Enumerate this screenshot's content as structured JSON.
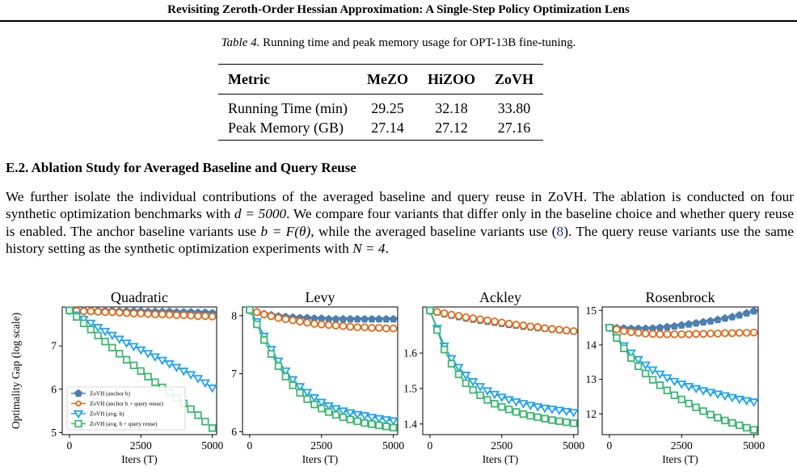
{
  "header": {
    "running_title": "Revisiting Zeroth-Order Hessian Approximation: A Single-Step Policy Optimization Lens"
  },
  "table": {
    "caption_label": "Table 4.",
    "caption_text": "Running time and peak memory usage for OPT-13B fine-tuning.",
    "columns": [
      "Metric",
      "MeZO",
      "HiZOO",
      "ZoVH"
    ],
    "rows": [
      [
        "Running Time (min)",
        "29.25",
        "32.18",
        "33.80"
      ],
      [
        "Peak Memory (GB)",
        "27.14",
        "27.12",
        "27.16"
      ]
    ]
  },
  "section": {
    "title": "E.2. Ablation Study for Averaged Baseline and Query Reuse",
    "p1": "We further isolate the individual contributions of the averaged baseline and query reuse in ZoVH. The ablation is conducted on four synthetic optimization benchmarks with ",
    "p1_math": "d = 5000",
    "p2": ". We compare four variants that differ only in the baseline choice and whether query reuse is enabled. The anchor baseline variants use ",
    "p2_math": "b = F(θ)",
    "p3": ", while the averaged baseline variants use (",
    "p3_cite": "8",
    "p4": "). The query reuse variants use the same history setting as the synthetic optimization experiments with ",
    "p4_math": "N = 4",
    "p5": "."
  },
  "chart_data": [
    {
      "type": "line",
      "title": "Quadratic",
      "xlabel": "Iters (T)",
      "ylabel": "Optimality Gap (log scale)",
      "xlim": [
        -250,
        5150
      ],
      "ylim": [
        4.95,
        7.9
      ],
      "xticks": [
        0,
        2500,
        5000
      ],
      "xticklabels": [
        "0",
        "2500",
        "5000"
      ],
      "yticks": [
        5,
        6,
        7
      ],
      "yticklabels": [
        "5",
        "6",
        "7"
      ],
      "legend": "lower-left",
      "series": [
        {
          "name": "ZoVH (anchor b)",
          "color": "#4a7fb0",
          "marker": "pentagon",
          "filled": true,
          "values": [
            7.82,
            7.82,
            7.82,
            7.81,
            7.81,
            7.81,
            7.81,
            7.8,
            7.8,
            7.8,
            7.8,
            7.79,
            7.79,
            7.79,
            7.79,
            7.78,
            7.78,
            7.78,
            7.77,
            7.77,
            7.76
          ]
        },
        {
          "name": "ZoVH (anchor b + query reuse)",
          "color": "#dd6c1e",
          "marker": "circle",
          "filled": false,
          "values": [
            7.82,
            7.81,
            7.8,
            7.8,
            7.79,
            7.78,
            7.78,
            7.77,
            7.76,
            7.75,
            7.75,
            7.74,
            7.73,
            7.73,
            7.72,
            7.71,
            7.71,
            7.7,
            7.69,
            7.69,
            7.68
          ]
        },
        {
          "name": "ZoVH (avg. b)",
          "color": "#1ea2f0",
          "marker": "triangle-down",
          "filled": false,
          "values": [
            7.82,
            7.72,
            7.62,
            7.53,
            7.43,
            7.34,
            7.25,
            7.16,
            7.07,
            6.99,
            6.91,
            6.83,
            6.75,
            6.67,
            6.59,
            6.51,
            6.42,
            6.34,
            6.25,
            6.15,
            6.03
          ]
        },
        {
          "name": "ZoVH (avg. b + query reuse)",
          "color": "#3cb870",
          "marker": "square",
          "filled": false,
          "values": [
            7.82,
            7.67,
            7.52,
            7.38,
            7.24,
            7.1,
            6.96,
            6.82,
            6.68,
            6.55,
            6.42,
            6.29,
            6.16,
            6.04,
            5.92,
            5.8,
            5.67,
            5.54,
            5.4,
            5.25,
            5.1
          ]
        }
      ]
    },
    {
      "type": "line",
      "title": "Levy",
      "xlabel": "Iters (T)",
      "ylabel": "",
      "xlim": [
        -250,
        5150
      ],
      "ylim": [
        5.95,
        8.15
      ],
      "xticks": [
        0,
        2500,
        5000
      ],
      "xticklabels": [
        "0",
        "2500",
        "5000"
      ],
      "yticks": [
        6,
        7,
        8
      ],
      "yticklabels": [
        "6",
        "7",
        "8"
      ],
      "series": [
        {
          "name": "ZoVH (anchor b)",
          "color": "#4a7fb0",
          "marker": "pentagon",
          "filled": true,
          "values": [
            8.1,
            8.06,
            8.03,
            8.01,
            7.99,
            7.98,
            7.97,
            7.96,
            7.96,
            7.95,
            7.95,
            7.94,
            7.94,
            7.94,
            7.94,
            7.94,
            7.94,
            7.94,
            7.94,
            7.94,
            7.94
          ]
        },
        {
          "name": "ZoVH (anchor b + query reuse)",
          "color": "#dd6c1e",
          "marker": "circle",
          "filled": false,
          "values": [
            8.1,
            8.06,
            8.02,
            7.99,
            7.96,
            7.94,
            7.92,
            7.9,
            7.88,
            7.86,
            7.85,
            7.84,
            7.83,
            7.82,
            7.81,
            7.8,
            7.8,
            7.79,
            7.79,
            7.78,
            7.78
          ]
        },
        {
          "name": "ZoVH (avg. b)",
          "color": "#1ea2f0",
          "marker": "triangle-down",
          "filled": false,
          "values": [
            8.1,
            7.9,
            7.65,
            7.42,
            7.22,
            7.05,
            6.9,
            6.78,
            6.68,
            6.59,
            6.51,
            6.45,
            6.4,
            6.36,
            6.33,
            6.3,
            6.28,
            6.25,
            6.23,
            6.21,
            6.19
          ]
        },
        {
          "name": "ZoVH (avg. b + query reuse)",
          "color": "#3cb870",
          "marker": "square",
          "filled": false,
          "values": [
            8.1,
            7.85,
            7.58,
            7.34,
            7.13,
            6.95,
            6.8,
            6.67,
            6.56,
            6.47,
            6.4,
            6.34,
            6.29,
            6.25,
            6.21,
            6.18,
            6.15,
            6.13,
            6.11,
            6.09,
            6.07
          ]
        }
      ]
    },
    {
      "type": "line",
      "title": "Ackley",
      "xlabel": "Iters (T)",
      "ylabel": "",
      "xlim": [
        -250,
        5150
      ],
      "ylim": [
        1.37,
        1.73
      ],
      "xticks": [
        0,
        2500,
        5000
      ],
      "xticklabels": [
        "0",
        "2500",
        "5000"
      ],
      "yticks": [
        1.4,
        1.5,
        1.6
      ],
      "yticklabels": [
        "1.4",
        "1.5",
        "1.6"
      ],
      "series": [
        {
          "name": "ZoVH (anchor b)",
          "color": "#4a7fb0",
          "marker": "pentagon",
          "filled": true,
          "values": [
            1.72,
            1.715,
            1.71,
            1.706,
            1.702,
            1.698,
            1.695,
            1.692,
            1.689,
            1.686,
            1.683,
            1.68,
            1.678,
            1.675,
            1.673,
            1.671,
            1.669,
            1.667,
            1.665,
            1.663,
            1.661
          ]
        },
        {
          "name": "ZoVH (anchor b + query reuse)",
          "color": "#dd6c1e",
          "marker": "circle",
          "filled": false,
          "values": [
            1.72,
            1.716,
            1.712,
            1.708,
            1.705,
            1.701,
            1.698,
            1.695,
            1.692,
            1.689,
            1.686,
            1.683,
            1.68,
            1.678,
            1.675,
            1.673,
            1.67,
            1.668,
            1.666,
            1.664,
            1.662
          ]
        },
        {
          "name": "ZoVH (avg. b)",
          "color": "#1ea2f0",
          "marker": "triangle-down",
          "filled": false,
          "values": [
            1.72,
            1.67,
            1.62,
            1.585,
            1.56,
            1.538,
            1.52,
            1.506,
            1.494,
            1.484,
            1.476,
            1.469,
            1.463,
            1.458,
            1.453,
            1.449,
            1.445,
            1.442,
            1.439,
            1.436,
            1.433
          ]
        },
        {
          "name": "ZoVH (avg. b + query reuse)",
          "color": "#3cb870",
          "marker": "square",
          "filled": false,
          "values": [
            1.72,
            1.665,
            1.61,
            1.57,
            1.54,
            1.515,
            1.496,
            1.481,
            1.468,
            1.457,
            1.448,
            1.441,
            1.434,
            1.428,
            1.423,
            1.419,
            1.415,
            1.411,
            1.408,
            1.405,
            1.402
          ]
        }
      ]
    },
    {
      "type": "line",
      "title": "Rosenbrock",
      "xlabel": "Iters (T)",
      "ylabel": "",
      "xlim": [
        -250,
        5150
      ],
      "ylim": [
        11.4,
        15.1
      ],
      "xticks": [
        0,
        2500,
        5000
      ],
      "xticklabels": [
        "0",
        "2500",
        "5000"
      ],
      "yticks": [
        12,
        13,
        14,
        15
      ],
      "yticklabels": [
        "12",
        "13",
        "14",
        "15"
      ],
      "series": [
        {
          "name": "ZoVH (anchor b)",
          "color": "#4a7fb0",
          "marker": "pentagon",
          "filled": true,
          "values": [
            14.5,
            14.49,
            14.48,
            14.47,
            14.47,
            14.47,
            14.48,
            14.5,
            14.52,
            14.54,
            14.57,
            14.6,
            14.63,
            14.66,
            14.69,
            14.73,
            14.77,
            14.81,
            14.86,
            14.92,
            14.98
          ]
        },
        {
          "name": "ZoVH (anchor b + query reuse)",
          "color": "#dd6c1e",
          "marker": "circle",
          "filled": false,
          "values": [
            14.5,
            14.45,
            14.4,
            14.37,
            14.35,
            14.33,
            14.32,
            14.31,
            14.31,
            14.31,
            14.31,
            14.31,
            14.32,
            14.32,
            14.33,
            14.33,
            14.34,
            14.34,
            14.35,
            14.35,
            14.36
          ]
        },
        {
          "name": "ZoVH (avg. b)",
          "color": "#1ea2f0",
          "marker": "triangle-down",
          "filled": false,
          "values": [
            14.5,
            14.22,
            13.98,
            13.77,
            13.58,
            13.42,
            13.28,
            13.16,
            13.05,
            12.95,
            12.87,
            12.8,
            12.74,
            12.68,
            12.63,
            12.58,
            12.53,
            12.48,
            12.43,
            12.39,
            12.35
          ]
        },
        {
          "name": "ZoVH (avg. b + query reuse)",
          "color": "#3cb870",
          "marker": "square",
          "filled": false,
          "values": [
            14.5,
            14.2,
            13.9,
            13.62,
            13.38,
            13.17,
            12.99,
            12.83,
            12.68,
            12.54,
            12.42,
            12.3,
            12.19,
            12.08,
            11.98,
            11.89,
            11.81,
            11.74,
            11.67,
            11.6,
            11.54
          ]
        }
      ]
    }
  ]
}
